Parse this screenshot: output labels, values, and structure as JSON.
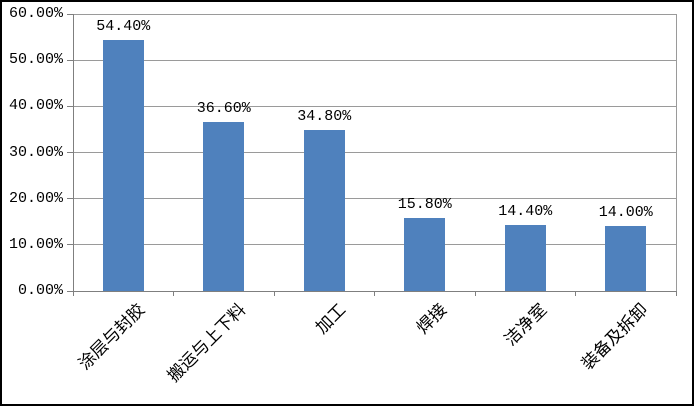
{
  "chart_data": {
    "type": "bar",
    "title": "",
    "xlabel": "",
    "ylabel": "",
    "categories": [
      "涂层与封胶",
      "搬运与上下料",
      "加工",
      "焊接",
      "洁净室",
      "装备及拆卸"
    ],
    "values": [
      54.4,
      36.6,
      34.8,
      15.8,
      14.4,
      14.0
    ],
    "data_labels": [
      "54.40%",
      "36.60%",
      "34.80%",
      "15.80%",
      "14.40%",
      "14.00%"
    ],
    "y_ticks": [
      "60.00%",
      "50.00%",
      "40.00%",
      "30.00%",
      "20.00%",
      "10.00%",
      "0.00%"
    ],
    "ylim": [
      0,
      60
    ],
    "y_tick_step": 10,
    "grid": true,
    "legend": false,
    "x_label_rotation_deg": -45,
    "colors": {
      "bar": "#4F81BD",
      "gridline": "#9a9a9a",
      "axis": "#7f7f7f",
      "text": "#000000",
      "frame_border": "#000000",
      "background": "#ffffff"
    }
  }
}
